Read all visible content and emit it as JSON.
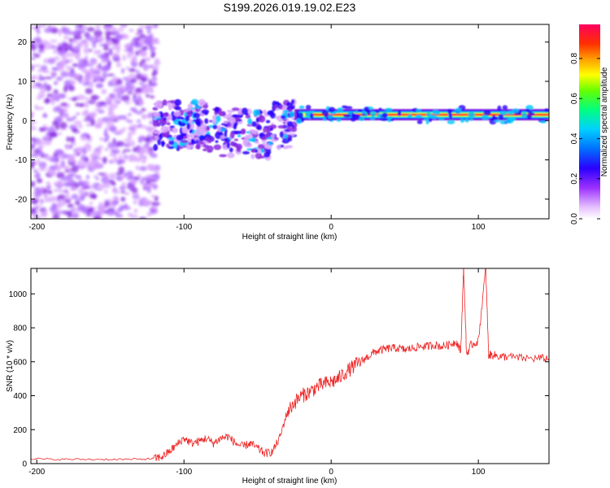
{
  "page": {
    "title": "S199.2026.019.19.02.E23"
  },
  "chart_data": [
    {
      "type": "heatmap",
      "name": "spectrogram",
      "xlabel": "Height of straight line (km)",
      "ylabel": "Frequency (Hz)",
      "xlim": [
        -204,
        148
      ],
      "ylim": [
        -25,
        24.5
      ],
      "xticks": [
        -200,
        -100,
        0,
        100
      ],
      "xtick_labels": [
        "-200",
        "-100",
        "0",
        "100"
      ],
      "yticks": [
        -20,
        -10,
        0,
        10,
        20
      ],
      "ytick_labels": [
        "-20",
        "-10",
        "0",
        "10",
        "20"
      ],
      "colorbar": {
        "label": "Normalized spectral amplitude",
        "range": [
          0,
          0.97
        ],
        "ticks": [
          0.0,
          0.2,
          0.4,
          0.6,
          0.8
        ],
        "tick_labels": [
          "0.0",
          "0.2",
          "0.4",
          "0.6",
          "0.8"
        ],
        "colormap": [
          "#ffffff",
          "#d9a6ff",
          "#8a2be2",
          "#2a00ff",
          "#00c8ff",
          "#00ff66",
          "#ffff00",
          "#ff6600",
          "#ff0033"
        ]
      },
      "regions": [
        {
          "description": "broadband noise",
          "x": [
            -204,
            -118
          ],
          "y": [
            -25,
            24.5
          ],
          "amplitude": 0.1
        },
        {
          "description": "scattered returns",
          "x": [
            -120,
            -25
          ],
          "y": [
            -12,
            6
          ],
          "amplitude": 0.2
        },
        {
          "description": "main echo",
          "x": [
            -25,
            148
          ],
          "y": [
            0,
            3
          ],
          "amplitude": 0.9
        }
      ]
    },
    {
      "type": "line",
      "name": "snr",
      "xlabel": "Height of straight line (km)",
      "ylabel": "SNR (10 * v/v)",
      "xlim": [
        -204,
        148
      ],
      "ylim": [
        0,
        1150
      ],
      "xticks": [
        -200,
        -100,
        0,
        100
      ],
      "xtick_labels": [
        "-200",
        "-100",
        "0",
        "100"
      ],
      "yticks": [
        0,
        200,
        400,
        600,
        800,
        1000
      ],
      "ytick_labels": [
        "0",
        "200",
        "400",
        "600",
        "800",
        "1000"
      ],
      "series": [
        {
          "name": "SNR",
          "color": "#ee2222",
          "x": [
            -204,
            -190,
            -170,
            -150,
            -130,
            -120,
            -115,
            -110,
            -105,
            -100,
            -95,
            -90,
            -85,
            -80,
            -75,
            -70,
            -65,
            -60,
            -55,
            -50,
            -45,
            -40,
            -35,
            -30,
            -25,
            -20,
            -15,
            -10,
            -5,
            0,
            5,
            10,
            15,
            20,
            25,
            30,
            35,
            40,
            45,
            50,
            55,
            60,
            65,
            70,
            75,
            80,
            85,
            88,
            90,
            92,
            95,
            100,
            105,
            107,
            110,
            115,
            120,
            130,
            140,
            148
          ],
          "values": [
            30,
            25,
            25,
            25,
            25,
            30,
            40,
            70,
            110,
            150,
            120,
            130,
            150,
            120,
            150,
            160,
            120,
            100,
            120,
            90,
            60,
            70,
            150,
            300,
            360,
            400,
            420,
            450,
            470,
            480,
            500,
            540,
            570,
            600,
            630,
            660,
            670,
            680,
            680,
            670,
            680,
            690,
            690,
            700,
            690,
            700,
            720,
            660,
            1150,
            640,
            700,
            720,
            1150,
            640,
            640,
            630,
            630,
            620,
            620,
            620
          ]
        }
      ]
    }
  ]
}
